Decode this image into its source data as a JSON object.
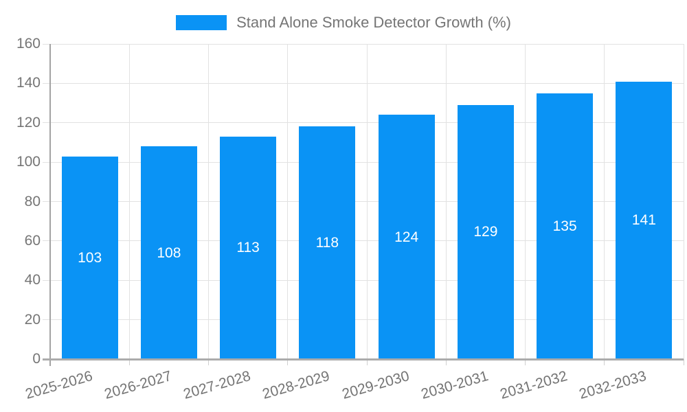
{
  "chart_data": {
    "type": "bar",
    "title": "Stand Alone Smoke Detector Growth (%)",
    "categories": [
      "2025-2026",
      "2026-2027",
      "2027-2028",
      "2028-2029",
      "2029-2030",
      "2030-2031",
      "2031-2032",
      "2032-2033"
    ],
    "values": [
      103,
      108,
      113,
      118,
      124,
      129,
      135,
      141
    ],
    "xlabel": "",
    "ylabel": "",
    "ylim": [
      0,
      160
    ],
    "ytick_step": 20,
    "ytick_labels": [
      "0",
      "20",
      "40",
      "60",
      "80",
      "100",
      "120",
      "140",
      "160"
    ],
    "grid": true,
    "legend_position": "top",
    "value_labels": "centered-white-inside-bars",
    "x_label_rotation_deg": -16
  },
  "colors": {
    "bar": "#0a93f5",
    "value_text": "#ffffff",
    "tick_text": "#757575",
    "title_text": "#757575",
    "gridline": "#e2e2e2",
    "y_axis_line": "#a3a3a3",
    "baseline": "#ababab",
    "minor_tick": "#cfcfcf",
    "background": "#ffffff"
  }
}
